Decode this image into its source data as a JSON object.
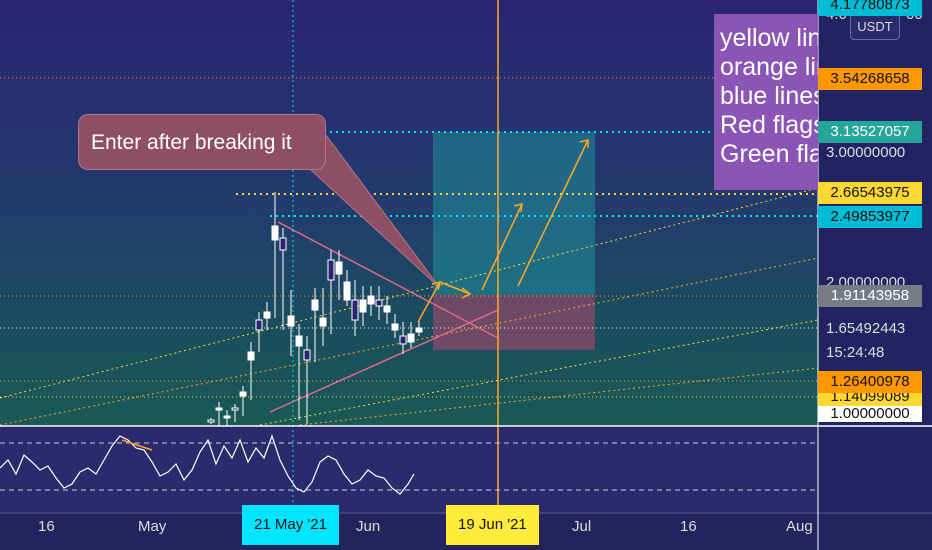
{
  "price_axis": {
    "labels": [
      {
        "text": "4.17780873",
        "color": "#00bcd4",
        "text_dark": true
      },
      {
        "text": "3.54268658",
        "color": "#ff9800",
        "text_dark": true
      },
      {
        "text": "3.13527057",
        "color": "#26a69a",
        "text_dark": false
      },
      {
        "text": "2.66543975",
        "color": "#fdd835",
        "text_dark": true
      },
      {
        "text": "2.49853977",
        "color": "#00bcd4",
        "text_dark": true
      },
      {
        "text": "1.91143958",
        "color": "#787b86",
        "text_dark": false
      },
      {
        "text": "1.26400978",
        "color": "#ff9800",
        "text_dark": true
      },
      {
        "text": "1.14099089",
        "color": "#fdd835",
        "text_dark": true
      },
      {
        "text": "1.00000000",
        "color": "#ffffff",
        "text_dark": true
      }
    ],
    "plain": [
      "4.0",
      "00",
      "3.00000000",
      "2.00000000",
      "1.65492443",
      "15:24:48"
    ],
    "currency": "USDT"
  },
  "time_axis": {
    "labels": [
      "16",
      "May",
      "Jun",
      "Jul",
      "16",
      "Aug"
    ],
    "highlighted": [
      {
        "text": "21 May '21",
        "color": "#00e5ff"
      },
      {
        "text": "19 Jun '21",
        "color": "#ffeb3b"
      }
    ]
  },
  "callout_text": "Enter after breaking it",
  "note_lines": [
    "yellow lines",
    "orange lines",
    "blue lines",
    "Red flags",
    "Green flags"
  ],
  "colors": {
    "bull_candle": "#ffffff",
    "bear_candle": "#ffffff",
    "target_zone": "#1f8f9a",
    "stop_zone": "#8a4a6a",
    "orange_line": "#ffa726",
    "yellow_line": "#fdd835",
    "blue_line": "#00e5ff",
    "pink_line": "#e06a8a",
    "vertical_orange": "#ffa726"
  }
}
